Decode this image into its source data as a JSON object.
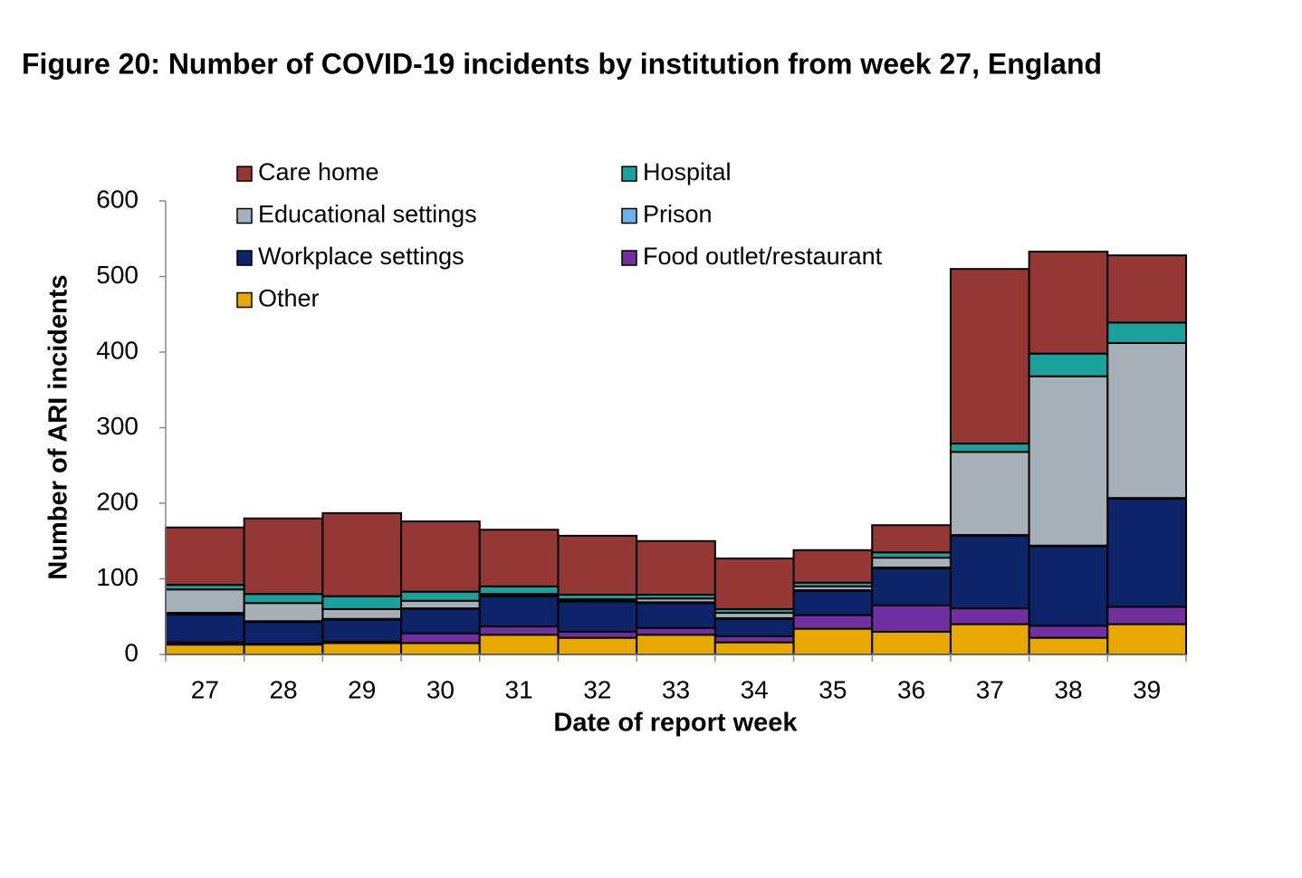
{
  "chart_data": {
    "type": "stacked_bar",
    "title": "Figure 20: Number of COVID-19 incidents by institution from week 27, England",
    "x_label": "Date of report week",
    "y_label": "Number of ARI incidents",
    "categories": [
      "27",
      "28",
      "29",
      "30",
      "31",
      "32",
      "33",
      "34",
      "35",
      "36",
      "37",
      "38",
      "39"
    ],
    "series": [
      {
        "name": "Care home",
        "color": "#953735",
        "values": [
          76,
          100,
          110,
          93,
          75,
          78,
          71,
          67,
          43,
          36,
          231,
          135,
          89
        ]
      },
      {
        "name": "Hospital",
        "color": "#1aa19c",
        "values": [
          6,
          12,
          17,
          12,
          10,
          6,
          5,
          5,
          5,
          7,
          11,
          30,
          27
        ]
      },
      {
        "name": "Educational settings",
        "color": "#a6b0b8",
        "values": [
          31,
          24,
          13,
          10,
          2,
          2,
          5,
          7,
          5,
          13,
          110,
          224,
          205
        ]
      },
      {
        "name": "Prison",
        "color": "#6cb4ee",
        "values": [
          2,
          1,
          1,
          1,
          1,
          1,
          1,
          1,
          1,
          1,
          1,
          1,
          1
        ]
      },
      {
        "name": "Workplace settings",
        "color": "#0d2568",
        "values": [
          37,
          29,
          29,
          32,
          40,
          40,
          33,
          23,
          32,
          49,
          96,
          105,
          143
        ]
      },
      {
        "name": "Food outlet/restaurant",
        "color": "#7030a0",
        "values": [
          3,
          1,
          2,
          13,
          11,
          8,
          9,
          8,
          18,
          35,
          21,
          16,
          23
        ]
      },
      {
        "name": "Other",
        "color": "#e9a800",
        "values": [
          13,
          13,
          15,
          15,
          26,
          22,
          26,
          16,
          34,
          30,
          40,
          22,
          40
        ]
      }
    ],
    "ylim": [
      0,
      600
    ],
    "yticks": [
      0,
      100,
      200,
      300,
      400,
      500,
      600
    ]
  }
}
